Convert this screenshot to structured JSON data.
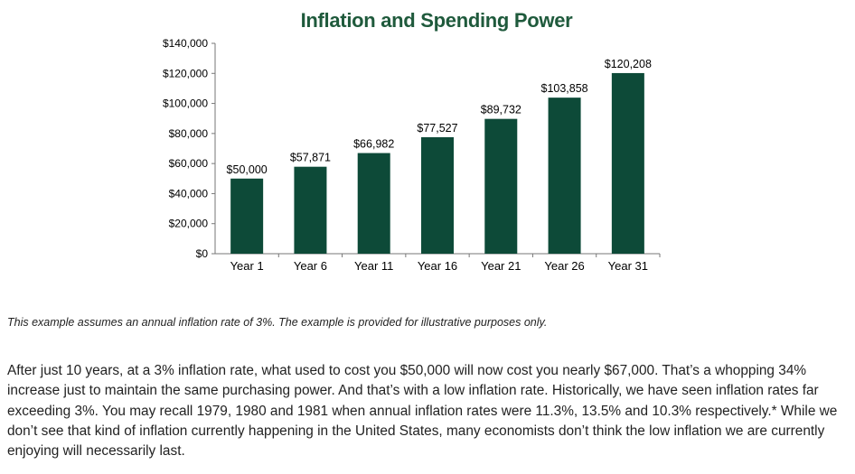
{
  "chart_data": {
    "type": "bar",
    "title": "Inflation and Spending Power",
    "categories": [
      "Year 1",
      "Year 6",
      "Year 11",
      "Year 16",
      "Year 21",
      "Year 26",
      "Year 31"
    ],
    "values": [
      50000,
      57871,
      66982,
      77527,
      89732,
      103858,
      120208
    ],
    "data_labels": [
      "$50,000",
      "$57,871",
      "$66,982",
      "$77,527",
      "$89,732",
      "$103,858",
      "$120,208"
    ],
    "yticks": [
      "$0",
      "$20,000",
      "$40,000",
      "$60,000",
      "$80,000",
      "$100,000",
      "$120,000",
      "$140,000"
    ],
    "ylim": [
      0,
      140000
    ],
    "xlabel": "",
    "ylabel": "",
    "grid": false,
    "bar_color": "#0d4a38"
  },
  "footnote": "This example assumes an annual inflation rate of 3%. The example is provided for illustrative purposes only.",
  "body_text": "After just 10 years, at a 3% inflation rate, what used to cost you $50,000 will now cost you nearly $67,000. That’s a whopping 34% increase just to maintain the same purchasing power. And that’s with a low inflation rate. Historically, we have seen inflation rates far exceeding 3%. You  may recall 1979, 1980 and 1981 when annual inflation rates were 11.3%, 13.5% and 10.3% respectively.* While we don’t see that kind of inflation currently happening in the United States, many economists don’t think the low inflation we are currently enjoying will necessarily last."
}
